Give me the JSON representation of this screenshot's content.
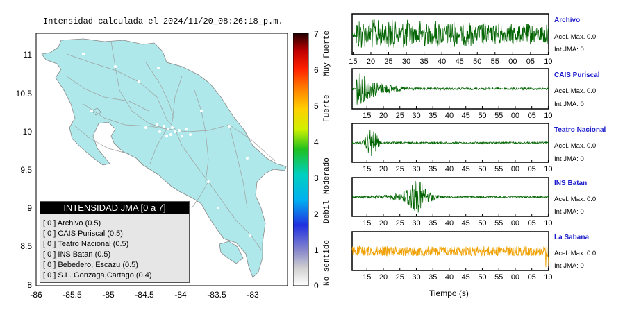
{
  "map": {
    "title": "Intensidad calculada el 2024/11/20_08:26:18_p.m.",
    "yticks": [
      "11",
      "10.5",
      "10",
      "9.5",
      "9",
      "8.5",
      "8"
    ],
    "xticks": [
      "-86",
      "-85.5",
      "-85",
      "-84.5",
      "-84",
      "-83.5",
      "-83"
    ],
    "land_color": "#aee8ea",
    "road_color": "#a0a0a0"
  },
  "colorbar": {
    "ticks": [
      "7",
      "6",
      "5",
      "4",
      "3",
      "2",
      "1",
      "0"
    ],
    "labels": [
      "Muy Fuerte",
      "Fuerte",
      "Moderado",
      "Debil",
      "No sentido"
    ]
  },
  "legend": {
    "title": "INTENSIDAD JMA [0 a 7]",
    "items": [
      "[ 0 ]  Archivo (0.5)",
      "[ 0 ]  CAIS Puriscal (0.5)",
      "[ 0 ]  Teatro Nacional (0.5)",
      "[ 0 ]  INS Batan (0.5)",
      "[ 0 ]  Bebedero, Escazu (0.5)",
      "[ 0 ]  S.L. Gonzaga,Cartago (0.4)"
    ]
  },
  "stations": [
    {
      "name": "Archivo",
      "acel": "Acel. Max. 0.0",
      "jma": "Int JMA: 0",
      "color": "#006400",
      "ticks": [
        "15",
        "20",
        "25",
        "30",
        "35",
        "40",
        "45",
        "50",
        "55",
        "00",
        "05",
        "10"
      ]
    },
    {
      "name": "CAIS Puriscal",
      "acel": "Acel. Max. 0.0",
      "jma": "Int JMA: 0",
      "color": "#006400",
      "ticks": [
        "15",
        "20",
        "25",
        "30",
        "35",
        "40",
        "45",
        "50",
        "55",
        "00",
        "05",
        "10"
      ]
    },
    {
      "name": "Teatro Nacional",
      "acel": "Acel. Max. 0.0",
      "jma": "Int JMA: 0",
      "color": "#006400",
      "ticks": [
        "15",
        "20",
        "25",
        "30",
        "35",
        "40",
        "45",
        "50",
        "55",
        "00",
        "05",
        "10"
      ]
    },
    {
      "name": "INS Batan",
      "acel": "Acel. Max. 0.0",
      "jma": "Int JMA: 0",
      "color": "#006400",
      "ticks": [
        "15",
        "20",
        "25",
        "30",
        "35",
        "40",
        "45",
        "50",
        "55",
        "00",
        "05",
        "10"
      ]
    },
    {
      "name": "La Sabana",
      "acel": "Acel. Max. 0.0",
      "jma": "Int JMA: 0",
      "color": "#f0a000",
      "ticks": [
        "15",
        "20",
        "25",
        "30",
        "35",
        "40",
        "45",
        "50",
        "55",
        "00",
        "05",
        "10"
      ]
    }
  ],
  "chart_data": [
    {
      "type": "map",
      "title": "Intensidad calculada el 2024/11/20_08:26:18_p.m.",
      "xlim": [
        -86,
        -82.5
      ],
      "ylim": [
        8,
        11.3
      ],
      "xticks": [
        -86,
        -85.5,
        -85,
        -84.5,
        -84,
        -83.5,
        -83
      ],
      "yticks": [
        8,
        8.5,
        9,
        9.5,
        10,
        10.5,
        11
      ]
    },
    {
      "type": "line",
      "xlabel": "Tiempo (s)",
      "series": [
        {
          "name": "Archivo",
          "acel_max": 0.0,
          "int_jma": 0,
          "burst_center": 20,
          "envelope": "broad"
        },
        {
          "name": "CAIS Puriscal",
          "acel_max": 0.0,
          "int_jma": 0,
          "burst_center": 11,
          "envelope": "decay"
        },
        {
          "name": "Teatro Nacional",
          "acel_max": 0.0,
          "int_jma": 0,
          "burst_center": 15,
          "envelope": "spike"
        },
        {
          "name": "INS Batan",
          "acel_max": 0.0,
          "int_jma": 0,
          "burst_center": 31,
          "envelope": "spike"
        },
        {
          "name": "La Sabana",
          "acel_max": 0.0,
          "int_jma": 0,
          "burst_center": null,
          "envelope": "noise"
        }
      ]
    }
  ]
}
